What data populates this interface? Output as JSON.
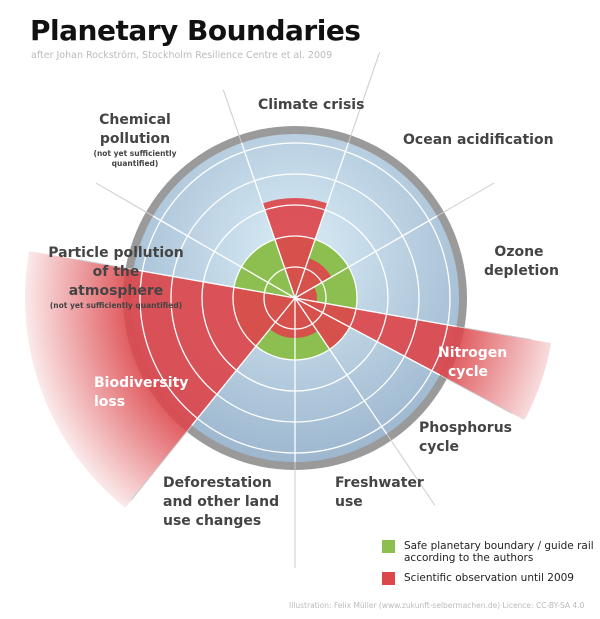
{
  "title": "Planetary Boundaries",
  "subtitle": "after Johan Rockström, Stockholm Resilience Centre et al. 2009",
  "colors": {
    "safe": "#8cbf50",
    "observed": "#dc474c",
    "globe": "#b5cfe2"
  },
  "boundaries": [
    {
      "name": "Climate crisis",
      "quantified": true
    },
    {
      "name": "Ocean acidification",
      "quantified": true
    },
    {
      "name": "Ozone depletion",
      "quantified": true
    },
    {
      "name": "Nitrogen cycle",
      "quantified": true
    },
    {
      "name": "Phosphorus cycle",
      "quantified": true
    },
    {
      "name": "Freshwater use",
      "quantified": true
    },
    {
      "name": "Deforestation and other land use changes",
      "quantified": true
    },
    {
      "name": "Biodiversity loss",
      "quantified": true
    },
    {
      "name": "Particle pollution of the atmosphere",
      "note": "(not yet sufficiently quantified)",
      "quantified": false
    },
    {
      "name": "Chemical pollution",
      "note": "(not yet sufficiently quantified)",
      "quantified": false
    }
  ],
  "legend": [
    {
      "label": "Safe planetary boundary / guide rail according to the authors",
      "color": "#8cbf50"
    },
    {
      "label": "Scientific observation until 2009",
      "color": "#dc474c"
    }
  ],
  "credit": "Illustration: Felix Müller (www.zukunft-selbermachen.de)   Licence: CC-BY-SA 4.0"
}
